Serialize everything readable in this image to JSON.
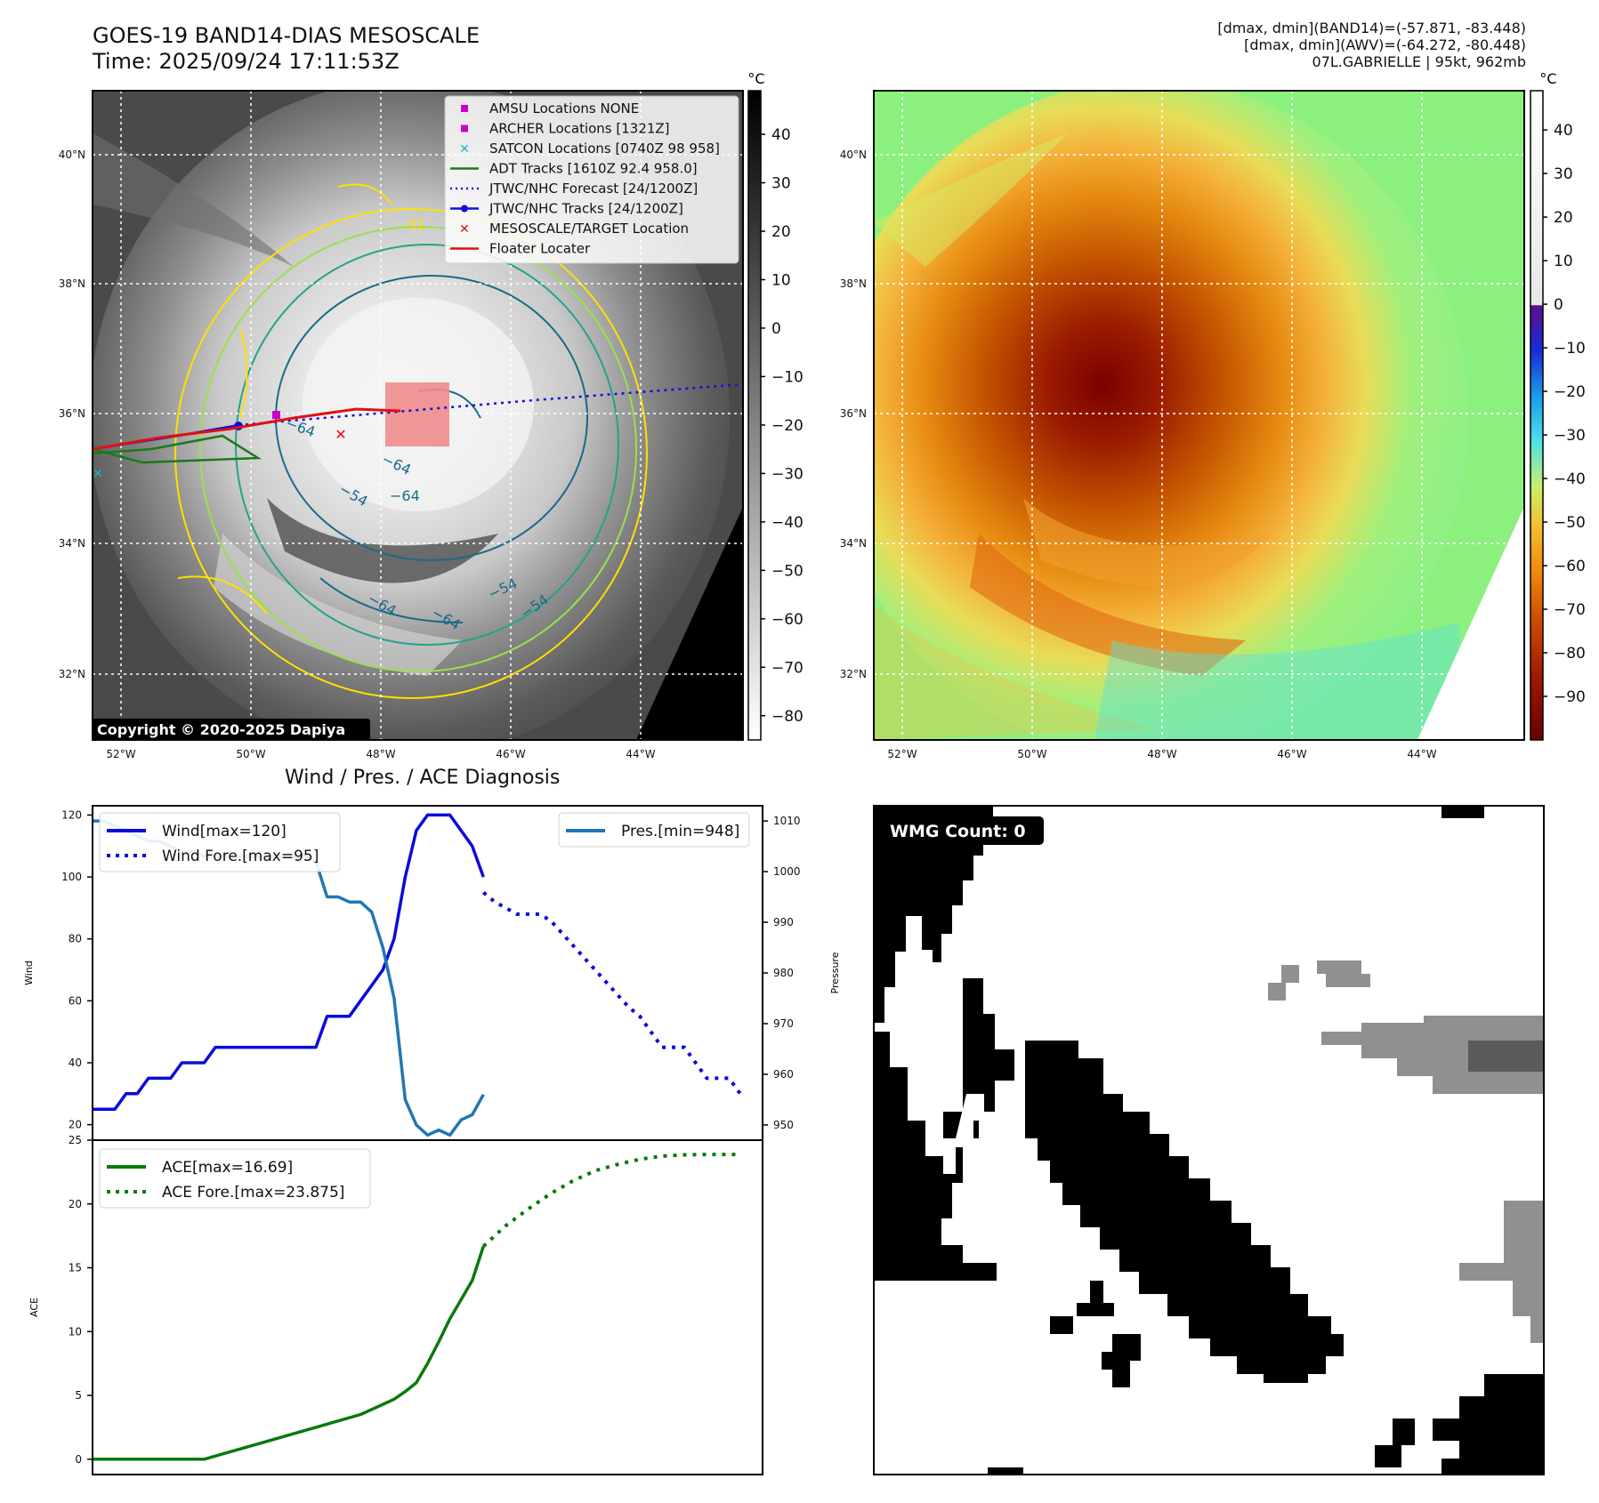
{
  "header": {
    "title_line1": "GOES-19 BAND14-DIAS MESOSCALE",
    "title_line2": "Time: 2025/09/24 17:11:53Z",
    "info_line1": "[dmax, dmin](BAND14)=(-57.871, -83.448)",
    "info_line2": "[dmax, dmin](AWV)=(-64.272, -80.448)",
    "info_line3": "07L.GABRIELLE | 95kt, 962mb"
  },
  "map": {
    "lat_ticks": [
      "40°N",
      "38°N",
      "36°N",
      "34°N",
      "32°N"
    ],
    "lon_ticks": [
      "52°W",
      "50°W",
      "48°W",
      "46°W",
      "44°W"
    ],
    "copyright": "Copyright © 2020-2025 Dapiya",
    "contour_labels": [
      "-31",
      "-64",
      "-54",
      "-64",
      "-64",
      "-54",
      "-64",
      "-54",
      "-64"
    ],
    "contour_glyphs": {
      "-31": "-31",
      "-64": "−64",
      "-54": "−54"
    },
    "legend": [
      {
        "label": "AMSU Locations NONE",
        "marker": "square",
        "color": "#cc00cc"
      },
      {
        "label": "ARCHER Locations [1321Z]",
        "marker": "square",
        "color": "#cc00cc"
      },
      {
        "label": "SATCON Locations [0740Z 98 958]",
        "marker": "x",
        "color": "#19b6c2"
      },
      {
        "label": "ADT Tracks [1610Z 92.4 958.0]",
        "marker": "line",
        "color": "#1a7a1a"
      },
      {
        "label": "JTWC/NHC Forecast [24/1200Z]",
        "marker": "dotted",
        "color": "#1010dd"
      },
      {
        "label": "JTWC/NHC Tracks [24/1200Z]",
        "marker": "line-dot",
        "color": "#1010dd"
      },
      {
        "label": "MESOSCALE/TARGET Location",
        "marker": "x",
        "color": "#e01010"
      },
      {
        "label": "Floater Locater",
        "marker": "line",
        "color": "#e01010"
      }
    ],
    "colorbar_gray": {
      "unit": "°C",
      "ticks": [
        "40",
        "30",
        "20",
        "10",
        "0",
        "−10",
        "−20",
        "−30",
        "−40",
        "−50",
        "−60",
        "−70",
        "−80"
      ],
      "range": [
        -85,
        49
      ]
    },
    "colorbar_color": {
      "unit": "°C",
      "ticks": [
        "40",
        "30",
        "20",
        "10",
        "0",
        "−10",
        "−20",
        "−30",
        "−40",
        "−50",
        "−60",
        "−70",
        "−80",
        "−90"
      ],
      "range": [
        -100,
        49
      ]
    }
  },
  "chart_data": [
    {
      "type": "line",
      "title": "Wind / Pres. / ACE Diagnosis",
      "ylabel": "Wind",
      "ylabel2": "Pressure",
      "ylim": [
        15,
        123
      ],
      "ylim2": [
        947,
        1013
      ],
      "xlim": [
        0,
        60
      ],
      "yticks": [
        20,
        40,
        60,
        80,
        100,
        120
      ],
      "yticks2": [
        950,
        960,
        970,
        980,
        990,
        1000,
        1010
      ],
      "series": [
        {
          "name": "Wind[max=120]",
          "style": "solid",
          "color": "#0a0adc",
          "x": [
            0,
            2,
            3,
            4,
            5,
            6,
            7,
            8,
            9,
            10,
            11,
            12,
            13,
            14,
            15,
            16,
            17,
            18,
            19,
            20,
            21,
            22,
            23,
            24,
            25,
            26,
            27,
            28,
            29,
            30,
            31,
            32,
            33,
            34,
            35
          ],
          "values": [
            25,
            25,
            30,
            30,
            35,
            35,
            35,
            40,
            40,
            40,
            45,
            45,
            45,
            45,
            45,
            45,
            45,
            45,
            45,
            45,
            55,
            55,
            55,
            60,
            65,
            70,
            80,
            100,
            115,
            120,
            120,
            120,
            115,
            110,
            100
          ]
        },
        {
          "name": "Wind Fore.[max=95]",
          "style": "dotted",
          "color": "#0a0adc",
          "x": [
            35,
            36,
            37,
            38,
            39,
            40,
            41,
            42,
            43,
            44,
            45,
            46,
            47,
            48,
            49,
            50,
            51,
            52,
            53,
            54,
            55,
            56,
            57,
            58
          ],
          "values": [
            95,
            92,
            90,
            88,
            88,
            88,
            86,
            82,
            78,
            74,
            70,
            66,
            62,
            58,
            55,
            50,
            45,
            45,
            45,
            40,
            35,
            35,
            35,
            30
          ]
        },
        {
          "name": "Pres.[min=948]",
          "style": "solid",
          "color": "#1f77b4",
          "axis": "y2",
          "x": [
            0,
            1,
            2,
            3,
            4,
            5,
            6,
            7,
            8,
            9,
            10,
            11,
            12,
            13,
            14,
            15,
            16,
            17,
            18,
            19,
            20,
            21,
            22,
            23,
            24,
            25,
            26,
            27,
            28,
            29,
            30,
            31,
            32,
            33,
            34,
            35
          ],
          "values": [
            1010,
            1010,
            1009,
            1008,
            1007,
            1006,
            1006,
            1005,
            1004,
            1004,
            1003,
            1003,
            1003,
            1003,
            1003,
            1003,
            1003,
            1003,
            1003,
            1003,
            1002,
            995,
            995,
            994,
            994,
            992,
            985,
            975,
            955,
            950,
            948,
            949,
            948,
            951,
            952,
            956
          ]
        }
      ]
    },
    {
      "type": "line",
      "ylabel": "ACE",
      "ylim": [
        -1.2,
        25
      ],
      "xlim": [
        0,
        60
      ],
      "yticks": [
        0,
        5,
        10,
        15,
        20,
        25
      ],
      "series": [
        {
          "name": "ACE[max=16.69]",
          "style": "solid",
          "color": "#0a7a0a",
          "x": [
            0,
            4,
            8,
            10,
            12,
            14,
            16,
            18,
            20,
            22,
            24,
            25,
            26,
            27,
            28,
            29,
            30,
            31,
            32,
            33,
            34,
            35
          ],
          "values": [
            0,
            0,
            0,
            0,
            0.5,
            1.0,
            1.5,
            2.0,
            2.5,
            3.0,
            3.5,
            3.9,
            4.3,
            4.7,
            5.3,
            6.0,
            7.5,
            9.2,
            11,
            12.5,
            14,
            16.69
          ]
        },
        {
          "name": "ACE Fore.[max=23.875]",
          "style": "dotted",
          "color": "#0a7a0a",
          "x": [
            35,
            37,
            39,
            41,
            43,
            45,
            47,
            49,
            51,
            53,
            55,
            57,
            58
          ],
          "values": [
            16.69,
            18.3,
            19.6,
            20.8,
            21.8,
            22.6,
            23.1,
            23.5,
            23.75,
            23.85,
            23.875,
            23.875,
            23.875
          ]
        }
      ]
    }
  ],
  "wmg": {
    "label": "WMG Count: 0"
  }
}
